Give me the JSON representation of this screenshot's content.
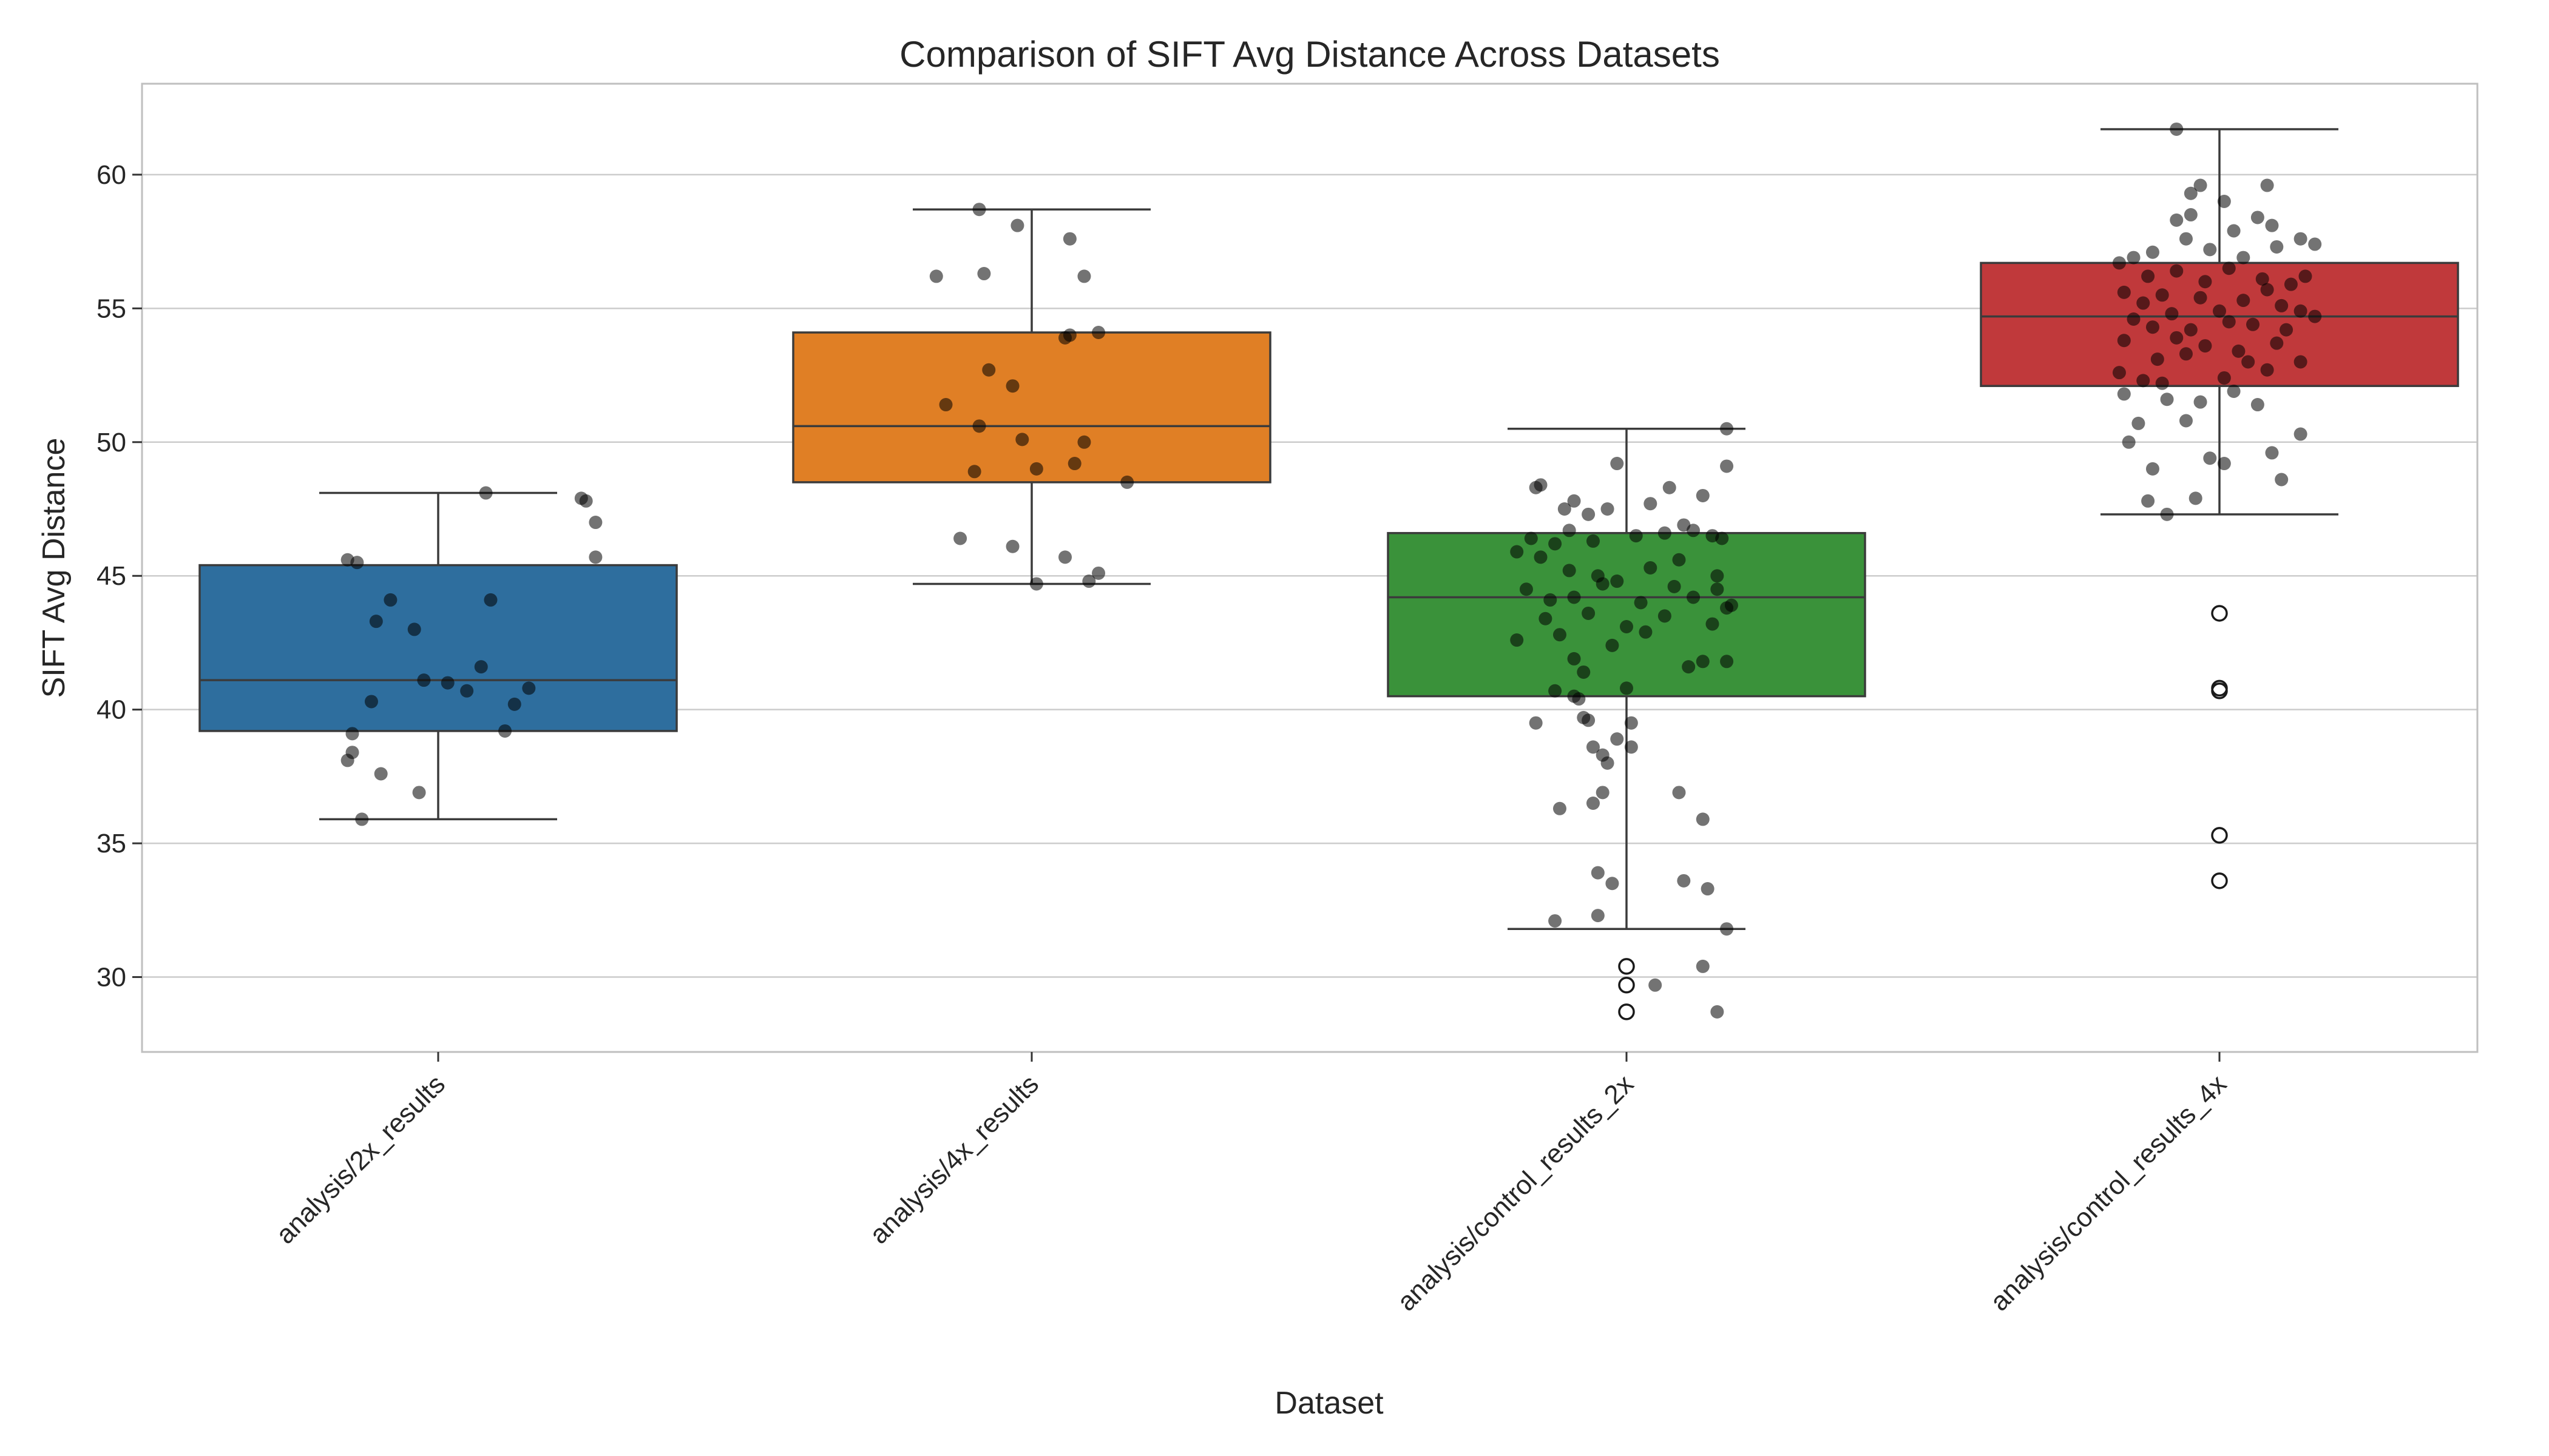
{
  "chart_data": {
    "type": "box",
    "title": "Comparison of SIFT Avg Distance Across Datasets",
    "xlabel": "Dataset",
    "ylabel": "SIFT Avg Distance",
    "ylim": [
      27.2,
      63.4
    ],
    "yticks": [
      30,
      35,
      40,
      45,
      50,
      55,
      60
    ],
    "grid": "horizontal",
    "categories": [
      "analysis/2x_results",
      "analysis/4x_results",
      "analysis/control_results_2x",
      "analysis/control_results_4x"
    ],
    "colors": [
      "#2e6e9e",
      "#e07f25",
      "#3a923a",
      "#c0393b"
    ],
    "boxes": [
      {
        "whisker_low": 35.9,
        "q1": 39.2,
        "median": 41.1,
        "q3": 45.4,
        "whisker_high": 48.1
      },
      {
        "whisker_low": 44.7,
        "q1": 48.5,
        "median": 50.6,
        "q3": 54.1,
        "whisker_high": 58.7
      },
      {
        "whisker_low": 31.8,
        "q1": 40.5,
        "median": 44.2,
        "q3": 46.6,
        "whisker_high": 50.5
      },
      {
        "whisker_low": 47.3,
        "q1": 52.1,
        "median": 54.7,
        "q3": 56.7,
        "whisker_high": 61.7
      }
    ],
    "outliers": [
      [],
      [],
      [
        30.4,
        29.7,
        28.7
      ],
      [
        43.6,
        40.8,
        40.7,
        35.3,
        33.6
      ]
    ],
    "points": [
      [
        {
          "dx": 0.1,
          "y": 48.1
        },
        {
          "dx": 0.3,
          "y": 47.9
        },
        {
          "dx": 0.31,
          "y": 47.8
        },
        {
          "dx": 0.33,
          "y": 47.0
        },
        {
          "dx": -0.19,
          "y": 45.6
        },
        {
          "dx": -0.17,
          "y": 45.5
        },
        {
          "dx": 0.33,
          "y": 45.7
        },
        {
          "dx": -0.1,
          "y": 44.1
        },
        {
          "dx": 0.11,
          "y": 44.1
        },
        {
          "dx": -0.13,
          "y": 43.3
        },
        {
          "dx": -0.05,
          "y": 43.0
        },
        {
          "dx": 0.09,
          "y": 41.6
        },
        {
          "dx": -0.03,
          "y": 41.1
        },
        {
          "dx": 0.02,
          "y": 41.0
        },
        {
          "dx": 0.19,
          "y": 40.8
        },
        {
          "dx": -0.14,
          "y": 40.3
        },
        {
          "dx": 0.06,
          "y": 40.7
        },
        {
          "dx": 0.16,
          "y": 40.2
        },
        {
          "dx": -0.18,
          "y": 39.1
        },
        {
          "dx": 0.14,
          "y": 39.2
        },
        {
          "dx": -0.18,
          "y": 38.4
        },
        {
          "dx": -0.19,
          "y": 38.1
        },
        {
          "dx": -0.12,
          "y": 37.6
        },
        {
          "dx": -0.04,
          "y": 36.9
        },
        {
          "dx": -0.16,
          "y": 35.9
        }
      ],
      [
        {
          "dx": -0.11,
          "y": 58.7
        },
        {
          "dx": -0.03,
          "y": 58.1
        },
        {
          "dx": 0.08,
          "y": 57.6
        },
        {
          "dx": -0.2,
          "y": 56.2
        },
        {
          "dx": -0.1,
          "y": 56.3
        },
        {
          "dx": 0.11,
          "y": 56.2
        },
        {
          "dx": 0.14,
          "y": 54.1
        },
        {
          "dx": 0.08,
          "y": 54.0
        },
        {
          "dx": 0.07,
          "y": 53.9
        },
        {
          "dx": -0.09,
          "y": 52.7
        },
        {
          "dx": -0.04,
          "y": 52.1
        },
        {
          "dx": -0.18,
          "y": 51.4
        },
        {
          "dx": -0.11,
          "y": 50.6
        },
        {
          "dx": -0.02,
          "y": 50.1
        },
        {
          "dx": 0.11,
          "y": 50.0
        },
        {
          "dx": 0.09,
          "y": 49.2
        },
        {
          "dx": -0.12,
          "y": 48.9
        },
        {
          "dx": 0.01,
          "y": 49.0
        },
        {
          "dx": 0.2,
          "y": 48.5
        },
        {
          "dx": -0.15,
          "y": 46.4
        },
        {
          "dx": -0.04,
          "y": 46.1
        },
        {
          "dx": 0.07,
          "y": 45.7
        },
        {
          "dx": 0.14,
          "y": 45.1
        },
        {
          "dx": 0.12,
          "y": 44.8
        },
        {
          "dx": 0.01,
          "y": 44.7
        }
      ],
      [
        {
          "dx": 0.21,
          "y": 50.5
        },
        {
          "dx": -0.18,
          "y": 48.4
        },
        {
          "dx": -0.19,
          "y": 48.3
        },
        {
          "dx": -0.02,
          "y": 49.2
        },
        {
          "dx": 0.09,
          "y": 48.3
        },
        {
          "dx": 0.16,
          "y": 48.0
        },
        {
          "dx": 0.21,
          "y": 49.1
        },
        {
          "dx": -0.11,
          "y": 47.8
        },
        {
          "dx": -0.13,
          "y": 47.5
        },
        {
          "dx": -0.08,
          "y": 47.3
        },
        {
          "dx": -0.04,
          "y": 47.5
        },
        {
          "dx": 0.05,
          "y": 47.7
        },
        {
          "dx": 0.12,
          "y": 46.9
        },
        {
          "dx": 0.14,
          "y": 46.7
        },
        {
          "dx": -0.2,
          "y": 46.4
        },
        {
          "dx": -0.15,
          "y": 46.2
        },
        {
          "dx": -0.12,
          "y": 46.7
        },
        {
          "dx": -0.07,
          "y": 46.3
        },
        {
          "dx": 0.02,
          "y": 46.5
        },
        {
          "dx": 0.08,
          "y": 46.6
        },
        {
          "dx": 0.18,
          "y": 46.5
        },
        {
          "dx": 0.2,
          "y": 46.4
        },
        {
          "dx": -0.23,
          "y": 45.9
        },
        {
          "dx": -0.18,
          "y": 45.7
        },
        {
          "dx": -0.12,
          "y": 45.2
        },
        {
          "dx": -0.06,
          "y": 45.0
        },
        {
          "dx": 0.05,
          "y": 45.3
        },
        {
          "dx": 0.11,
          "y": 45.6
        },
        {
          "dx": 0.19,
          "y": 45.0
        },
        {
          "dx": -0.21,
          "y": 44.5
        },
        {
          "dx": -0.16,
          "y": 44.1
        },
        {
          "dx": -0.11,
          "y": 44.2
        },
        {
          "dx": -0.05,
          "y": 44.7
        },
        {
          "dx": -0.02,
          "y": 44.8
        },
        {
          "dx": 0.03,
          "y": 44.0
        },
        {
          "dx": 0.1,
          "y": 44.6
        },
        {
          "dx": 0.14,
          "y": 44.2
        },
        {
          "dx": 0.19,
          "y": 44.5
        },
        {
          "dx": 0.22,
          "y": 43.9
        },
        {
          "dx": -0.17,
          "y": 43.4
        },
        {
          "dx": -0.08,
          "y": 43.6
        },
        {
          "dx": 0.0,
          "y": 43.1
        },
        {
          "dx": 0.04,
          "y": 42.9
        },
        {
          "dx": 0.08,
          "y": 43.5
        },
        {
          "dx": 0.18,
          "y": 43.2
        },
        {
          "dx": 0.21,
          "y": 43.8
        },
        {
          "dx": -0.23,
          "y": 42.6
        },
        {
          "dx": -0.14,
          "y": 42.8
        },
        {
          "dx": -0.03,
          "y": 42.4
        },
        {
          "dx": -0.11,
          "y": 41.9
        },
        {
          "dx": 0.13,
          "y": 41.6
        },
        {
          "dx": 0.16,
          "y": 41.8
        },
        {
          "dx": 0.21,
          "y": 41.8
        },
        {
          "dx": -0.09,
          "y": 41.4
        },
        {
          "dx": -0.15,
          "y": 40.7
        },
        {
          "dx": 0.0,
          "y": 40.8
        },
        {
          "dx": -0.11,
          "y": 40.5
        },
        {
          "dx": -0.1,
          "y": 40.4
        },
        {
          "dx": -0.19,
          "y": 39.5
        },
        {
          "dx": -0.09,
          "y": 39.7
        },
        {
          "dx": -0.08,
          "y": 39.6
        },
        {
          "dx": 0.01,
          "y": 39.5
        },
        {
          "dx": -0.02,
          "y": 38.9
        },
        {
          "dx": -0.07,
          "y": 38.6
        },
        {
          "dx": 0.01,
          "y": 38.6
        },
        {
          "dx": -0.05,
          "y": 38.3
        },
        {
          "dx": -0.04,
          "y": 38.0
        },
        {
          "dx": -0.05,
          "y": 36.9
        },
        {
          "dx": 0.11,
          "y": 36.9
        },
        {
          "dx": -0.14,
          "y": 36.3
        },
        {
          "dx": -0.07,
          "y": 36.5
        },
        {
          "dx": 0.16,
          "y": 35.9
        },
        {
          "dx": -0.06,
          "y": 33.9
        },
        {
          "dx": -0.03,
          "y": 33.5
        },
        {
          "dx": 0.12,
          "y": 33.6
        },
        {
          "dx": 0.17,
          "y": 33.3
        },
        {
          "dx": -0.06,
          "y": 32.3
        },
        {
          "dx": -0.15,
          "y": 32.1
        },
        {
          "dx": 0.21,
          "y": 31.8
        },
        {
          "dx": 0.16,
          "y": 30.4
        },
        {
          "dx": 0.06,
          "y": 29.7
        },
        {
          "dx": 0.19,
          "y": 28.7
        }
      ],
      [
        {
          "dx": -0.09,
          "y": 58.3
        },
        {
          "dx": -0.06,
          "y": 58.5
        },
        {
          "dx": 0.03,
          "y": 57.9
        },
        {
          "dx": 0.08,
          "y": 58.4
        },
        {
          "dx": -0.18,
          "y": 56.9
        },
        {
          "dx": -0.14,
          "y": 57.1
        },
        {
          "dx": -0.07,
          "y": 57.6
        },
        {
          "dx": -0.02,
          "y": 57.2
        },
        {
          "dx": 0.05,
          "y": 56.9
        },
        {
          "dx": 0.12,
          "y": 57.3
        },
        {
          "dx": 0.2,
          "y": 57.4
        },
        {
          "dx": -0.21,
          "y": 56.7
        },
        {
          "dx": -0.15,
          "y": 56.2
        },
        {
          "dx": -0.09,
          "y": 56.4
        },
        {
          "dx": -0.03,
          "y": 56.0
        },
        {
          "dx": 0.02,
          "y": 56.5
        },
        {
          "dx": 0.09,
          "y": 56.1
        },
        {
          "dx": 0.15,
          "y": 55.9
        },
        {
          "dx": 0.18,
          "y": 56.2
        },
        {
          "dx": -0.2,
          "y": 55.6
        },
        {
          "dx": -0.16,
          "y": 55.2
        },
        {
          "dx": -0.12,
          "y": 55.5
        },
        {
          "dx": -0.04,
          "y": 55.4
        },
        {
          "dx": 0.0,
          "y": 54.9
        },
        {
          "dx": 0.05,
          "y": 55.3
        },
        {
          "dx": 0.1,
          "y": 55.7
        },
        {
          "dx": 0.13,
          "y": 55.1
        },
        {
          "dx": 0.17,
          "y": 54.9
        },
        {
          "dx": -0.18,
          "y": 54.6
        },
        {
          "dx": -0.14,
          "y": 54.3
        },
        {
          "dx": -0.1,
          "y": 54.8
        },
        {
          "dx": -0.06,
          "y": 54.2
        },
        {
          "dx": 0.02,
          "y": 54.5
        },
        {
          "dx": 0.07,
          "y": 54.4
        },
        {
          "dx": 0.14,
          "y": 54.2
        },
        {
          "dx": 0.2,
          "y": 54.7
        },
        {
          "dx": -0.2,
          "y": 53.8
        },
        {
          "dx": -0.09,
          "y": 53.9
        },
        {
          "dx": -0.03,
          "y": 53.6
        },
        {
          "dx": 0.04,
          "y": 53.4
        },
        {
          "dx": 0.12,
          "y": 53.7
        },
        {
          "dx": -0.13,
          "y": 53.1
        },
        {
          "dx": -0.07,
          "y": 53.3
        },
        {
          "dx": 0.06,
          "y": 53.0
        },
        {
          "dx": 0.17,
          "y": 53.0
        },
        {
          "dx": -0.21,
          "y": 52.6
        },
        {
          "dx": -0.16,
          "y": 52.3
        },
        {
          "dx": -0.12,
          "y": 52.2
        },
        {
          "dx": 0.01,
          "y": 52.4
        },
        {
          "dx": 0.1,
          "y": 52.7
        },
        {
          "dx": -0.2,
          "y": 51.8
        },
        {
          "dx": -0.11,
          "y": 51.6
        },
        {
          "dx": -0.04,
          "y": 51.5
        },
        {
          "dx": 0.03,
          "y": 51.9
        },
        {
          "dx": 0.08,
          "y": 51.4
        },
        {
          "dx": -0.17,
          "y": 50.7
        },
        {
          "dx": -0.07,
          "y": 50.8
        },
        {
          "dx": 0.17,
          "y": 50.3
        },
        {
          "dx": -0.19,
          "y": 50.0
        },
        {
          "dx": 0.11,
          "y": 49.6
        },
        {
          "dx": -0.02,
          "y": 49.4
        },
        {
          "dx": 0.01,
          "y": 49.2
        },
        {
          "dx": -0.14,
          "y": 49.0
        },
        {
          "dx": 0.13,
          "y": 48.6
        },
        {
          "dx": -0.05,
          "y": 47.9
        },
        {
          "dx": -0.15,
          "y": 47.8
        },
        {
          "dx": -0.11,
          "y": 47.3
        },
        {
          "dx": -0.06,
          "y": 59.3
        },
        {
          "dx": -0.04,
          "y": 59.6
        },
        {
          "dx": 0.1,
          "y": 59.6
        },
        {
          "dx": 0.01,
          "y": 59.0
        },
        {
          "dx": -0.09,
          "y": 61.7
        },
        {
          "dx": 0.17,
          "y": 57.6
        },
        {
          "dx": 0.11,
          "y": 58.1
        }
      ]
    ]
  }
}
